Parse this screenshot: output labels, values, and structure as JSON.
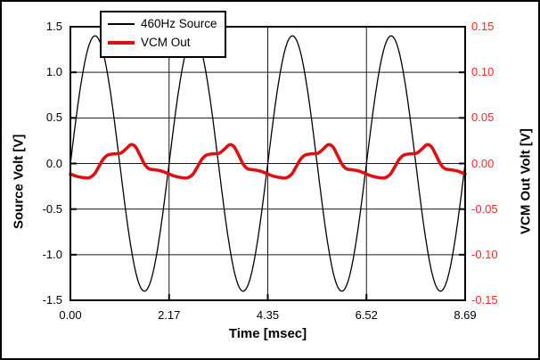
{
  "figure": {
    "background": "#ffffff",
    "border_color": "#000000"
  },
  "legend": {
    "items": [
      {
        "label": "460Hz Source",
        "color": "#000000",
        "line_width": 1.5
      },
      {
        "label": "VCM Out",
        "color": "#dd1111",
        "line_width": 4
      }
    ]
  },
  "chart_data": {
    "type": "line",
    "title": "",
    "x_axis": {
      "label": "Time [msec]",
      "min": 0,
      "max": 8.69,
      "ticks": [
        0,
        2.1725,
        4.345,
        6.5175,
        8.69
      ],
      "tick_labels": [
        "0.00",
        "2.17",
        "4.35",
        "6.52",
        "8.69"
      ]
    },
    "y_axis_left": {
      "label": "Source Volt [V]",
      "min": -1.5,
      "max": 1.5,
      "ticks": [
        1.5,
        1.0,
        0.5,
        0.0,
        -0.5,
        -1.0,
        -1.5
      ],
      "tick_labels": [
        "1.5",
        "1.0",
        "0.5",
        "0.0",
        "-0.5",
        "-1.0",
        "-1.5"
      ],
      "tick_color": "#000000"
    },
    "y_axis_right": {
      "label": "VCM Out Volt [V]",
      "min": -0.15,
      "max": 0.15,
      "ticks": [
        0.15,
        0.1,
        0.05,
        0.0,
        -0.05,
        -0.1,
        -0.15
      ],
      "tick_labels": [
        "0.15",
        "0.10",
        "0.05",
        "0.00",
        "-0.05",
        "-0.10",
        "-0.15"
      ],
      "tick_color": "#ff2626",
      "label_color": "#000000"
    },
    "grid": {
      "show": true,
      "color": "#1a1a1a",
      "width": 1
    },
    "series": [
      {
        "name": "460Hz Source",
        "axis": "left",
        "color": "#000000",
        "width": 1.3,
        "smooth": false,
        "waveform": {
          "type": "sine",
          "amplitude_V": 1.4,
          "frequency_Hz": 460,
          "period_msec": 2.1725,
          "phase_rad": 0,
          "offset_V": 0
        }
      },
      {
        "name": "VCM Out",
        "axis": "right",
        "color": "#dd1111",
        "width": 3.6,
        "smooth": true,
        "waveform": {
          "type": "periodic_samples",
          "period_msec": 2.1725,
          "repeats": 4,
          "points_t_msec_v_V": [
            [
              0.0,
              -0.0115
            ],
            [
              0.12,
              -0.0138
            ],
            [
              0.25,
              -0.0152
            ],
            [
              0.4,
              -0.0157
            ],
            [
              0.52,
              -0.012
            ],
            [
              0.62,
              -0.004
            ],
            [
              0.72,
              0.0045
            ],
            [
              0.82,
              0.0092
            ],
            [
              0.95,
              0.0106
            ],
            [
              1.1,
              0.0112
            ],
            [
              1.22,
              0.0158
            ],
            [
              1.33,
              0.0206
            ],
            [
              1.43,
              0.0185
            ],
            [
              1.53,
              0.0095
            ],
            [
              1.63,
              -0.0005
            ],
            [
              1.73,
              -0.0058
            ],
            [
              1.88,
              -0.007
            ],
            [
              2.0,
              -0.0082
            ],
            [
              2.1,
              -0.01
            ]
          ]
        }
      }
    ]
  }
}
